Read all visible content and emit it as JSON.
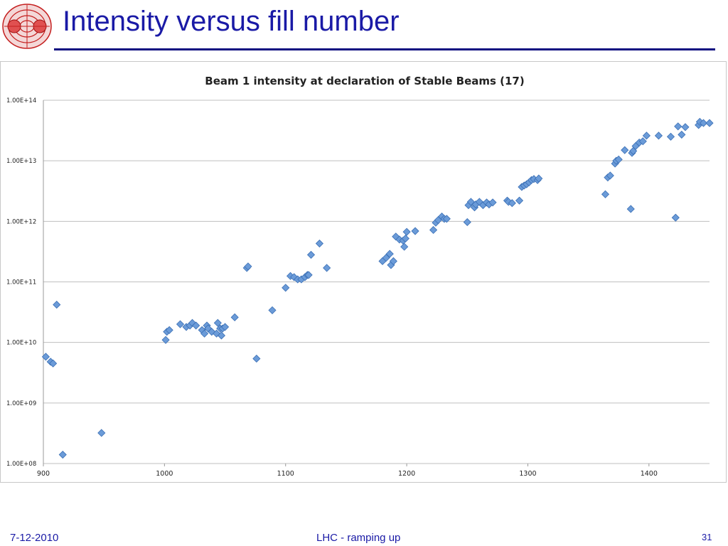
{
  "slide": {
    "title": "Intensity versus fill number",
    "footer_date": "7-12-2010",
    "footer_center": "LHC - ramping up",
    "page_number": "31"
  },
  "colors": {
    "title": "#1a1aa6",
    "rule": "#0d0d80",
    "marker": "#6b9bd8",
    "marker_stroke": "#3a6fb5",
    "grid": "#bfbfbf",
    "logo": "#c41e1e"
  },
  "chart_data": {
    "type": "scatter",
    "title": "Beam 1 intensity at declaration of Stable Beams (17)",
    "xlabel": "",
    "ylabel": "",
    "y_scale": "log",
    "xlim": [
      900,
      1450
    ],
    "ylim": [
      100000000.0,
      100000000000000.0
    ],
    "x_ticks": [
      900,
      1000,
      1100,
      1200,
      1300,
      1400
    ],
    "x_tick_labels": [
      "900",
      "1000",
      "1100",
      "1200",
      "1300",
      "1400"
    ],
    "y_ticks": [
      100000000.0,
      1000000000.0,
      10000000000.0,
      100000000000.0,
      1000000000000.0,
      10000000000000.0,
      100000000000000.0
    ],
    "y_tick_labels": [
      "1.00E+08",
      "1.00E+09",
      "1.00E+10",
      "1.00E+11",
      "1.00E+12",
      "1.00E+13",
      "1.00E+14"
    ],
    "grid": "horizontal",
    "legend": "none",
    "series": [
      {
        "points": [
          [
            902,
            5800000000.0
          ],
          [
            906,
            4800000000.0
          ],
          [
            908,
            4500000000.0
          ],
          [
            911,
            42000000000.0
          ],
          [
            916,
            140000000.0
          ],
          [
            948,
            320000000.0
          ],
          [
            1001,
            11000000000.0
          ],
          [
            1002,
            15000000000.0
          ],
          [
            1004,
            16000000000.0
          ],
          [
            1013,
            20000000000.0
          ],
          [
            1018,
            18000000000.0
          ],
          [
            1021,
            19000000000.0
          ],
          [
            1023,
            21000000000.0
          ],
          [
            1026,
            19000000000.0
          ],
          [
            1031,
            16000000000.0
          ],
          [
            1033,
            14000000000.0
          ],
          [
            1035,
            19000000000.0
          ],
          [
            1036,
            17000000000.0
          ],
          [
            1039,
            15000000000.0
          ],
          [
            1043,
            14000000000.0
          ],
          [
            1044,
            21000000000.0
          ],
          [
            1046,
            17000000000.0
          ],
          [
            1047,
            13000000000.0
          ],
          [
            1048,
            17000000000.0
          ],
          [
            1050,
            18000000000.0
          ],
          [
            1058,
            26000000000.0
          ],
          [
            1068,
            170000000000.0
          ],
          [
            1069,
            180000000000.0
          ],
          [
            1076,
            5400000000.0
          ],
          [
            1089,
            34000000000.0
          ],
          [
            1100,
            80000000000.0
          ],
          [
            1104,
            125000000000.0
          ],
          [
            1107,
            120000000000.0
          ],
          [
            1110,
            110000000000.0
          ],
          [
            1113,
            110000000000.0
          ],
          [
            1116,
            120000000000.0
          ],
          [
            1118,
            130000000000.0
          ],
          [
            1119,
            130000000000.0
          ],
          [
            1121,
            280000000000.0
          ],
          [
            1128,
            430000000000.0
          ],
          [
            1134,
            170000000000.0
          ],
          [
            1180,
            220000000000.0
          ],
          [
            1183,
            250000000000.0
          ],
          [
            1186,
            290000000000.0
          ],
          [
            1187,
            190000000000.0
          ],
          [
            1189,
            220000000000.0
          ],
          [
            1191,
            560000000000.0
          ],
          [
            1194,
            500000000000.0
          ],
          [
            1197,
            480000000000.0
          ],
          [
            1198,
            380000000000.0
          ],
          [
            1199,
            520000000000.0
          ],
          [
            1200,
            670000000000.0
          ],
          [
            1207,
            690000000000.0
          ],
          [
            1222,
            720000000000.0
          ],
          [
            1224,
            950000000000.0
          ],
          [
            1226,
            1050000000000.0
          ],
          [
            1229,
            1200000000000.0
          ],
          [
            1231,
            1100000000000.0
          ],
          [
            1233,
            1100000000000.0
          ],
          [
            1250,
            970000000000.0
          ],
          [
            1251,
            1850000000000.0
          ],
          [
            1253,
            2100000000000.0
          ],
          [
            1256,
            1700000000000.0
          ],
          [
            1257,
            1900000000000.0
          ],
          [
            1260,
            2100000000000.0
          ],
          [
            1263,
            1850000000000.0
          ],
          [
            1266,
            2050000000000.0
          ],
          [
            1268,
            1900000000000.0
          ],
          [
            1271,
            2050000000000.0
          ],
          [
            1283,
            2200000000000.0
          ],
          [
            1284,
            2100000000000.0
          ],
          [
            1287,
            2000000000000.0
          ],
          [
            1293,
            2200000000000.0
          ],
          [
            1295,
            3700000000000.0
          ],
          [
            1297,
            3900000000000.0
          ],
          [
            1299,
            4100000000000.0
          ],
          [
            1301,
            4400000000000.0
          ],
          [
            1303,
            4800000000000.0
          ],
          [
            1305,
            5000000000000.0
          ],
          [
            1308,
            4800000000000.0
          ],
          [
            1309,
            5100000000000.0
          ],
          [
            1364,
            2800000000000.0
          ],
          [
            1366,
            5300000000000.0
          ],
          [
            1368,
            5700000000000.0
          ],
          [
            1372,
            9000000000000.0
          ],
          [
            1373,
            10000000000000.0
          ],
          [
            1375,
            10500000000000.0
          ],
          [
            1380,
            15000000000000.0
          ],
          [
            1385,
            1600000000000.0
          ],
          [
            1386,
            13500000000000.0
          ],
          [
            1387,
            14500000000000.0
          ],
          [
            1389,
            17500000000000.0
          ],
          [
            1392,
            20000000000000.0
          ],
          [
            1395,
            21000000000000.0
          ],
          [
            1398,
            26000000000000.0
          ],
          [
            1408,
            26000000000000.0
          ],
          [
            1418,
            25000000000000.0
          ],
          [
            1422,
            1150000000000.0
          ],
          [
            1424,
            37000000000000.0
          ],
          [
            1427,
            27000000000000.0
          ],
          [
            1430,
            36000000000000.0
          ],
          [
            1441,
            39000000000000.0
          ],
          [
            1442,
            44000000000000.0
          ],
          [
            1445,
            42000000000000.0
          ],
          [
            1450,
            42000000000000.0
          ]
        ]
      }
    ]
  }
}
